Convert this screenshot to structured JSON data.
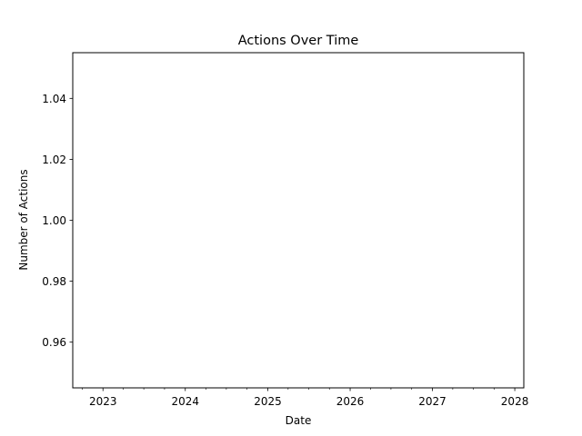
{
  "chart_data": {
    "type": "line",
    "title": "Actions Over Time",
    "xlabel": "Date",
    "ylabel": "Number of Actions",
    "x_axis_type": "date",
    "xlim": [
      "2022-08-20",
      "2028-02-10"
    ],
    "ylim": [
      0.945,
      1.055
    ],
    "x_ticks": [
      "2023",
      "2024",
      "2025",
      "2026",
      "2027",
      "2028"
    ],
    "y_ticks": [
      "0.96",
      "0.98",
      "1.00",
      "1.02",
      "1.04"
    ],
    "grid": false,
    "series": []
  }
}
